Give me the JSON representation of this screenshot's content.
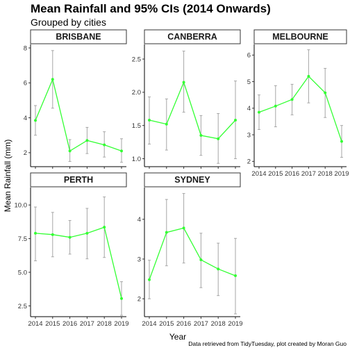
{
  "chart_data": {
    "type": "line",
    "title": "Mean Rainfall and 95% CIs (2014 Onwards)",
    "subtitle": "Grouped by cities",
    "xlabel": "Year",
    "ylabel": "Mean Rainfall (mm)",
    "caption": "Data retrieved from TidyTuesday, plot created by Moran Guo",
    "x": [
      "2014",
      "2015",
      "2016",
      "2017",
      "2018",
      "2019"
    ],
    "line_color": "#33ff33",
    "errorbar_color": "#a6a6a6",
    "grid": false,
    "panels": [
      {
        "name": "BRISBANE",
        "ylim": [
          1.2,
          8.2
        ],
        "yticks": [
          "2",
          "4",
          "6",
          "8"
        ],
        "values": [
          3.85,
          6.2,
          2.1,
          2.7,
          2.45,
          2.1
        ],
        "lower": [
          3.0,
          4.55,
          1.5,
          1.95,
          1.75,
          1.45
        ],
        "upper": [
          4.7,
          7.85,
          2.75,
          3.45,
          3.2,
          2.8
        ]
      },
      {
        "name": "CANBERRA",
        "ylim": [
          0.88,
          2.72
        ],
        "yticks": [
          "1.0",
          "1.5",
          "2.0",
          "2.5"
        ],
        "values": [
          1.58,
          1.52,
          2.15,
          1.35,
          1.3,
          1.58
        ],
        "lower": [
          1.22,
          1.13,
          1.7,
          1.05,
          0.93,
          1.0
        ],
        "upper": [
          1.93,
          1.9,
          2.62,
          1.65,
          1.68,
          2.17
        ]
      },
      {
        "name": "MELBOURNE",
        "ylim": [
          1.8,
          6.4
        ],
        "yticks": [
          "2",
          "3",
          "4",
          "5",
          "6"
        ],
        "values": [
          3.85,
          4.08,
          4.33,
          5.2,
          4.58,
          2.75
        ],
        "lower": [
          3.2,
          3.3,
          3.75,
          4.2,
          3.65,
          2.15
        ],
        "upper": [
          4.5,
          4.85,
          4.9,
          6.2,
          5.5,
          3.35
        ]
      },
      {
        "name": "PERTH",
        "ylim": [
          1.7,
          11.3
        ],
        "yticks": [
          "2.5",
          "5.0",
          "7.5",
          "10.0"
        ],
        "values": [
          7.9,
          7.8,
          7.6,
          7.9,
          8.35,
          3.05
        ],
        "lower": [
          5.85,
          6.15,
          6.35,
          6.0,
          6.1,
          1.8
        ],
        "upper": [
          9.85,
          9.45,
          8.85,
          9.75,
          10.6,
          4.3
        ]
      },
      {
        "name": "SYDNEY",
        "ylim": [
          1.55,
          4.8
        ],
        "yticks": [
          "2",
          "3",
          "4"
        ],
        "values": [
          2.48,
          3.67,
          3.78,
          2.98,
          2.75,
          2.58
        ],
        "lower": [
          2.0,
          2.83,
          2.9,
          2.28,
          2.08,
          1.62
        ],
        "upper": [
          2.97,
          4.5,
          4.65,
          3.65,
          3.4,
          3.52
        ]
      }
    ]
  }
}
